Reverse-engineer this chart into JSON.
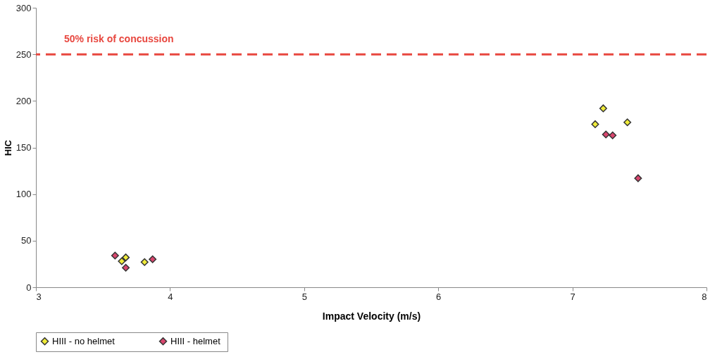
{
  "chart_data": {
    "type": "scatter",
    "xlabel": "Impact Velocity (m/s)",
    "ylabel": "HIC",
    "xlim": [
      3,
      8
    ],
    "xticks": [
      3,
      4,
      5,
      6,
      7,
      8
    ],
    "ylim": [
      0,
      300
    ],
    "yticks": [
      0,
      50,
      100,
      150,
      200,
      250,
      300
    ],
    "grid": false,
    "legend": "bottom",
    "marker": "diamond",
    "series": [
      {
        "name": "HIII - no helmet",
        "color": "#f0ec3a",
        "x": [
          3.67,
          3.64,
          3.81,
          7.23,
          7.17,
          7.41
        ],
        "values": [
          32,
          28,
          27,
          192,
          175,
          177
        ]
      },
      {
        "name": "HIII  - helmet",
        "color": "#d9466e",
        "x": [
          3.59,
          3.67,
          3.87,
          7.25,
          7.3,
          7.49
        ],
        "values": [
          34,
          21,
          30,
          164,
          163,
          117
        ]
      }
    ],
    "ref_lines": [
      {
        "axis": "y",
        "value": 250,
        "label": "50% risk of concussion",
        "color": "#e8473f",
        "line_style": "dashed"
      }
    ]
  }
}
